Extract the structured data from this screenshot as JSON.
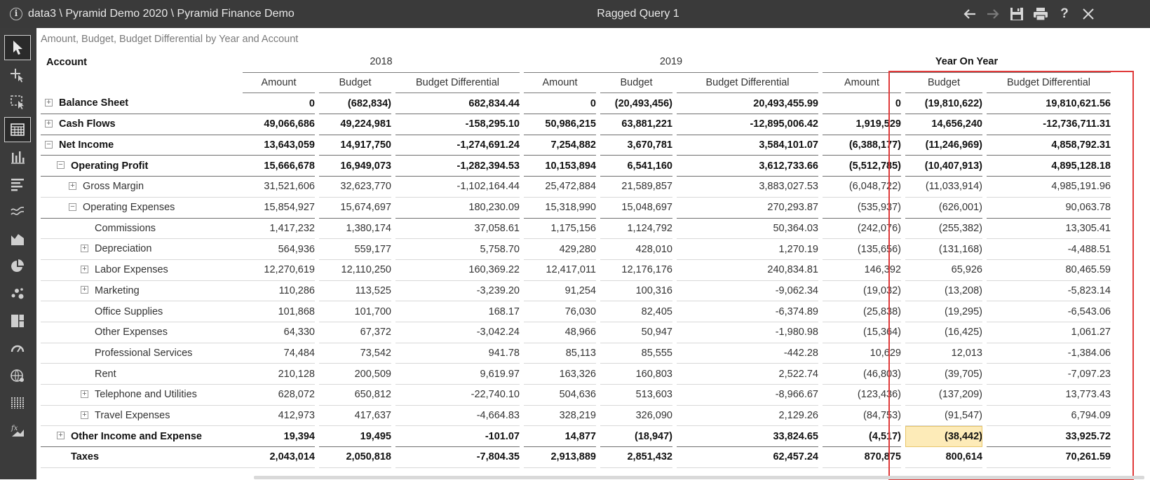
{
  "titlebar": {
    "path": "data3 \\ Pyramid Demo 2020 \\ Pyramid Finance Demo",
    "title": "Ragged Query 1",
    "buttons": [
      "back-arrow-icon",
      "forward-arrow-icon",
      "save-icon",
      "print-icon",
      "help-icon",
      "close-icon"
    ],
    "help_label": "?"
  },
  "sidebar": {
    "items": [
      "pointer-icon",
      "add-point-icon",
      "select-area-icon",
      "grid-icon",
      "bar-chart-icon",
      "horizontal-bar-icon",
      "line-chart-icon",
      "area-chart-icon",
      "pie-chart-icon",
      "scatter-icon",
      "treemap-icon",
      "gauge-icon",
      "map-icon",
      "columns-icon",
      "formula-icon"
    ],
    "active_index": 3
  },
  "grid": {
    "subtitle": "Amount, Budget, Budget Differential by Year and Account",
    "account_header": "Account",
    "years": [
      "2018",
      "2019",
      "Year On Year"
    ],
    "measures": [
      "Amount",
      "Budget",
      "Budget Differential"
    ],
    "rows": [
      {
        "label": "Balance Sheet",
        "indent": 0,
        "expander": "+",
        "bold": true,
        "values": [
          "0",
          "(682,834)",
          "682,834.44",
          "0",
          "(20,493,456)",
          "20,493,455.99",
          "0",
          "(19,810,622)",
          "19,810,621.56"
        ]
      },
      {
        "label": "Cash Flows",
        "indent": 0,
        "expander": "+",
        "bold": true,
        "values": [
          "49,066,686",
          "49,224,981",
          "-158,295.10",
          "50,986,215",
          "63,881,221",
          "-12,895,006.42",
          "1,919,529",
          "14,656,240",
          "-12,736,711.31"
        ]
      },
      {
        "label": "Net Income",
        "indent": 0,
        "expander": "−",
        "bold": true,
        "values": [
          "13,643,059",
          "14,917,750",
          "-1,274,691.24",
          "7,254,882",
          "3,670,781",
          "3,584,101.07",
          "(6,388,177)",
          "(11,246,969)",
          "4,858,792.31"
        ]
      },
      {
        "label": "Operating Profit",
        "indent": 1,
        "expander": "−",
        "bold": true,
        "values": [
          "15,666,678",
          "16,949,073",
          "-1,282,394.53",
          "10,153,894",
          "6,541,160",
          "3,612,733.66",
          "(5,512,785)",
          "(10,407,913)",
          "4,895,128.18"
        ]
      },
      {
        "label": "Gross Margin",
        "indent": 2,
        "expander": "+",
        "bold": false,
        "values": [
          "31,521,606",
          "32,623,770",
          "-1,102,164.44",
          "25,472,884",
          "21,589,857",
          "3,883,027.53",
          "(6,048,722)",
          "(11,033,914)",
          "4,985,191.96"
        ]
      },
      {
        "label": "Operating Expenses",
        "indent": 2,
        "expander": "−",
        "bold": false,
        "values": [
          "15,854,927",
          "15,674,697",
          "180,230.09",
          "15,318,990",
          "15,048,697",
          "270,293.87",
          "(535,937)",
          "(626,001)",
          "90,063.78"
        ]
      },
      {
        "label": "Commissions",
        "indent": 3,
        "expander": "",
        "bold": false,
        "values": [
          "1,417,232",
          "1,380,174",
          "37,058.61",
          "1,175,156",
          "1,124,792",
          "50,364.03",
          "(242,076)",
          "(255,382)",
          "13,305.41"
        ]
      },
      {
        "label": "Depreciation",
        "indent": 3,
        "expander": "+",
        "bold": false,
        "values": [
          "564,936",
          "559,177",
          "5,758.70",
          "429,280",
          "428,010",
          "1,270.19",
          "(135,656)",
          "(131,168)",
          "-4,488.51"
        ]
      },
      {
        "label": "Labor Expenses",
        "indent": 3,
        "expander": "+",
        "bold": false,
        "values": [
          "12,270,619",
          "12,110,250",
          "160,369.22",
          "12,417,011",
          "12,176,176",
          "240,834.81",
          "146,392",
          "65,926",
          "80,465.59"
        ]
      },
      {
        "label": "Marketing",
        "indent": 3,
        "expander": "+",
        "bold": false,
        "values": [
          "110,286",
          "113,525",
          "-3,239.20",
          "91,254",
          "100,316",
          "-9,062.34",
          "(19,032)",
          "(13,208)",
          "-5,823.14"
        ]
      },
      {
        "label": "Office Supplies",
        "indent": 3,
        "expander": "",
        "bold": false,
        "values": [
          "101,868",
          "101,700",
          "168.17",
          "76,030",
          "82,405",
          "-6,374.89",
          "(25,838)",
          "(19,295)",
          "-6,543.06"
        ]
      },
      {
        "label": "Other Expenses",
        "indent": 3,
        "expander": "",
        "bold": false,
        "values": [
          "64,330",
          "67,372",
          "-3,042.24",
          "48,966",
          "50,947",
          "-1,980.98",
          "(15,364)",
          "(16,425)",
          "1,061.27"
        ]
      },
      {
        "label": "Professional Services",
        "indent": 3,
        "expander": "",
        "bold": false,
        "values": [
          "74,484",
          "73,542",
          "941.78",
          "85,113",
          "85,555",
          "-442.28",
          "10,629",
          "12,013",
          "-1,384.06"
        ]
      },
      {
        "label": "Rent",
        "indent": 3,
        "expander": "",
        "bold": false,
        "values": [
          "210,128",
          "200,509",
          "9,619.97",
          "163,326",
          "160,803",
          "2,522.74",
          "(46,803)",
          "(39,705)",
          "-7,097.23"
        ]
      },
      {
        "label": "Telephone and Utilities",
        "indent": 3,
        "expander": "+",
        "bold": false,
        "values": [
          "628,072",
          "650,812",
          "-22,740.10",
          "504,636",
          "513,603",
          "-8,966.67",
          "(123,436)",
          "(137,209)",
          "13,773.43"
        ]
      },
      {
        "label": "Travel Expenses",
        "indent": 3,
        "expander": "+",
        "bold": false,
        "values": [
          "412,973",
          "417,637",
          "-4,664.83",
          "328,219",
          "326,090",
          "2,129.26",
          "(84,753)",
          "(91,547)",
          "6,794.09"
        ]
      },
      {
        "label": "Other Income and Expense",
        "indent": 1,
        "expander": "+",
        "bold": true,
        "values": [
          "19,394",
          "19,495",
          "-101.07",
          "14,877",
          "(18,947)",
          "33,824.65",
          "(4,517)",
          "(38,442)",
          "33,925.72"
        ]
      },
      {
        "label": "Taxes",
        "indent": 1,
        "expander": "",
        "bold": true,
        "values": [
          "2,043,014",
          "2,050,818",
          "-7,804.35",
          "2,913,889",
          "2,851,432",
          "62,457.24",
          "870,875",
          "800,614",
          "70,261.59"
        ]
      }
    ],
    "selected_cell": {
      "row": 16,
      "col": 7
    },
    "colors": {
      "highlight": "#fdebb8",
      "selection_box": "#e03a3a",
      "titlebar": "#3a3a3a",
      "sidebar": "#3b3b3b"
    }
  }
}
